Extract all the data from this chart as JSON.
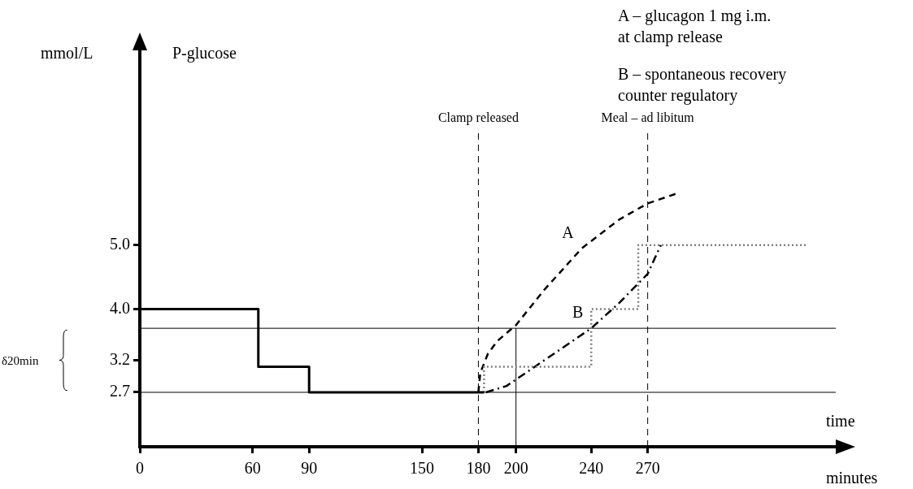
{
  "chart_data": {
    "type": "step",
    "title": "P-glucose",
    "ylabel": "mmol/L",
    "xlabel": "minutes",
    "xlim": [
      0,
      370
    ],
    "xticks": [
      0,
      60,
      90,
      150,
      180,
      200,
      240,
      270
    ],
    "ylim": [
      1.85,
      8.04
    ],
    "yticks": [
      {
        "value": 2.7,
        "label": "2.7"
      },
      {
        "value": 3.2,
        "label": "3.2"
      },
      {
        "value": 4,
        "label": "4.0"
      },
      {
        "value": 5,
        "label": "5.0"
      }
    ],
    "grid": false,
    "legend": false,
    "series": [
      {
        "color": "#000000",
        "line_style": "solid",
        "x": [
          0,
          63,
          90,
          150,
          183
        ],
        "values": [
          5.0,
          4.0,
          3.1,
          2.7,
          2.7
        ]
      },
      {
        "type": "step",
        "color": "#808080",
        "line_style": "dotted",
        "x": [
          183,
          240,
          265,
          300,
          355
        ],
        "values": [
          2.7,
          3.1,
          4.0,
          5.0,
          5.0
        ]
      },
      {
        "type": "line",
        "name": "A",
        "color": "#000000",
        "line_style": "dashed",
        "x": [
          180,
          181,
          185,
          190,
          200,
          215,
          235,
          255,
          270,
          285
        ],
        "values": [
          2.7,
          3.0,
          3.3,
          3.5,
          3.75,
          4.3,
          4.95,
          5.4,
          5.65,
          5.8
        ]
      },
      {
        "type": "line",
        "name": "B",
        "color": "#000000",
        "line_style": "dashdot",
        "x": [
          184,
          195,
          200,
          220,
          240,
          255,
          270,
          277
        ],
        "values": [
          2.7,
          2.8,
          2.9,
          3.3,
          3.7,
          4.1,
          4.55,
          5.0
        ]
      }
    ],
    "ref_lines": [
      {
        "axis": "x",
        "value": 180,
        "label": "Clamp released",
        "line_style": "dashed"
      },
      {
        "axis": "x",
        "value": 270,
        "label": "Meal – ad libitum",
        "line_style": "dashed"
      },
      {
        "axis": "x",
        "value": 200,
        "label": null,
        "line_style": "solid"
      },
      {
        "axis": "y",
        "value": 2.7,
        "label": null,
        "line_style": "solid"
      },
      {
        "axis": "y",
        "value": 3.7,
        "label": null,
        "line_style": "solid"
      }
    ],
    "annotations": [
      "A – glucagon 1 mg i.m.\nat clamp release",
      "B – spontaneous recovery\ncounter regulatory",
      "time",
      "δ20min"
    ]
  }
}
